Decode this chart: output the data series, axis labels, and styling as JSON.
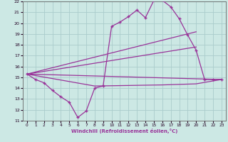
{
  "xlabel": "Windchill (Refroidissement éolien,°C)",
  "bg_color": "#cce8e4",
  "line_color": "#993399",
  "grid_color": "#aacccc",
  "xlim": [
    -0.5,
    23.5
  ],
  "ylim": [
    11,
    22
  ],
  "yticks": [
    11,
    12,
    13,
    14,
    15,
    16,
    17,
    18,
    19,
    20,
    21,
    22
  ],
  "xticks": [
    0,
    1,
    2,
    3,
    4,
    5,
    6,
    7,
    8,
    9,
    10,
    11,
    12,
    13,
    14,
    15,
    16,
    17,
    18,
    19,
    20,
    21,
    22,
    23
  ],
  "main_x": [
    0,
    1,
    2,
    3,
    4,
    5,
    6,
    7,
    8,
    9,
    10,
    11,
    12,
    13,
    14,
    15,
    16,
    17,
    18,
    19,
    20,
    21,
    22,
    23
  ],
  "main_y": [
    15.3,
    14.8,
    14.5,
    13.8,
    13.2,
    12.7,
    11.3,
    11.9,
    14.0,
    14.2,
    19.7,
    20.1,
    20.6,
    21.2,
    20.5,
    22.1,
    22.1,
    21.5,
    20.4,
    18.9,
    17.5,
    14.8,
    14.8,
    14.8
  ],
  "line_straight": [
    {
      "x": [
        0,
        23
      ],
      "y": [
        15.3,
        14.8
      ]
    },
    {
      "x": [
        0,
        20
      ],
      "y": [
        15.3,
        17.8
      ]
    },
    {
      "x": [
        0,
        20
      ],
      "y": [
        15.3,
        19.2
      ]
    }
  ],
  "line_flat_x": [
    0,
    8,
    16,
    20,
    23
  ],
  "line_flat_y": [
    15.3,
    14.2,
    14.3,
    14.4,
    14.8
  ]
}
